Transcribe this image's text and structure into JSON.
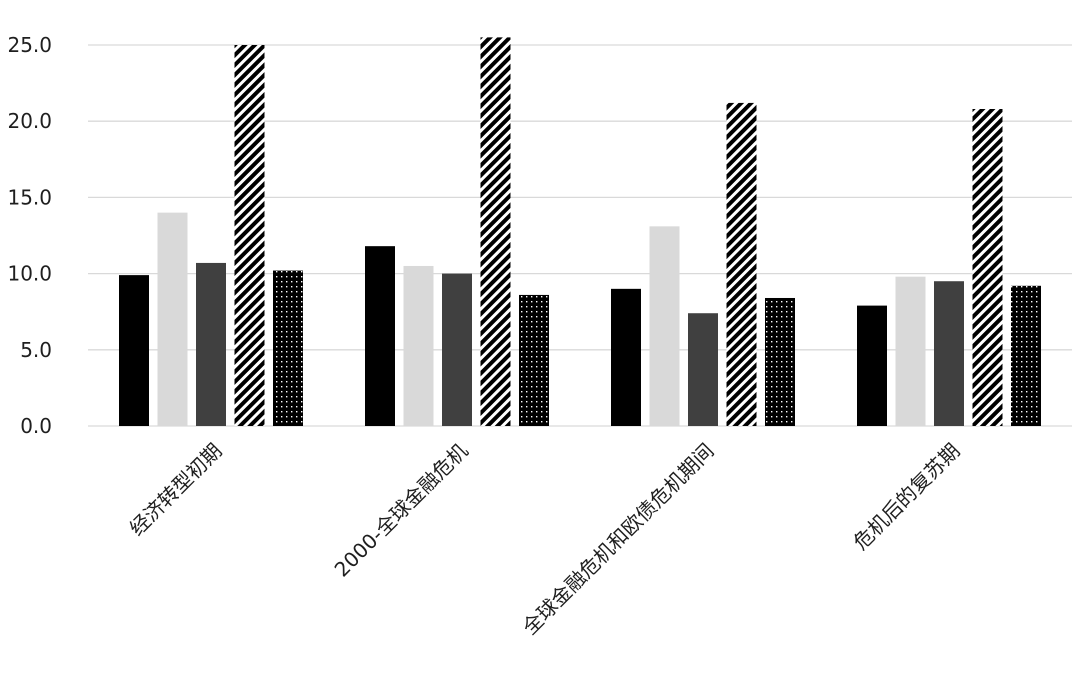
{
  "chart_data": {
    "type": "bar",
    "title": "",
    "xlabel": "",
    "ylabel": "",
    "ylim": [
      0,
      25
    ],
    "yticks": [
      "0.0",
      "5.0",
      "10.0",
      "15.0",
      "20.0",
      "25.0"
    ],
    "grid": true,
    "legend": "none",
    "categories": [
      "经济转型初期",
      "2000-全球金融危机",
      "全球金融危机和欧债危机期间",
      "危机后的复苏期"
    ],
    "series": [
      {
        "values": [
          9.9,
          11.8,
          9.0,
          7.9
        ],
        "fill": "solid",
        "color": "#000000"
      },
      {
        "values": [
          14.0,
          10.5,
          13.1,
          9.8
        ],
        "fill": "solid",
        "color": "#d9d9d9"
      },
      {
        "values": [
          10.7,
          10.0,
          7.4,
          9.5
        ],
        "fill": "solid",
        "color": "#404040"
      },
      {
        "values": [
          25.0,
          25.5,
          21.2,
          20.8
        ],
        "fill": "diagonal-stripes",
        "color": "#000000"
      },
      {
        "values": [
          10.2,
          8.6,
          8.4,
          9.2
        ],
        "fill": "dotted",
        "color": "#000000"
      }
    ]
  }
}
